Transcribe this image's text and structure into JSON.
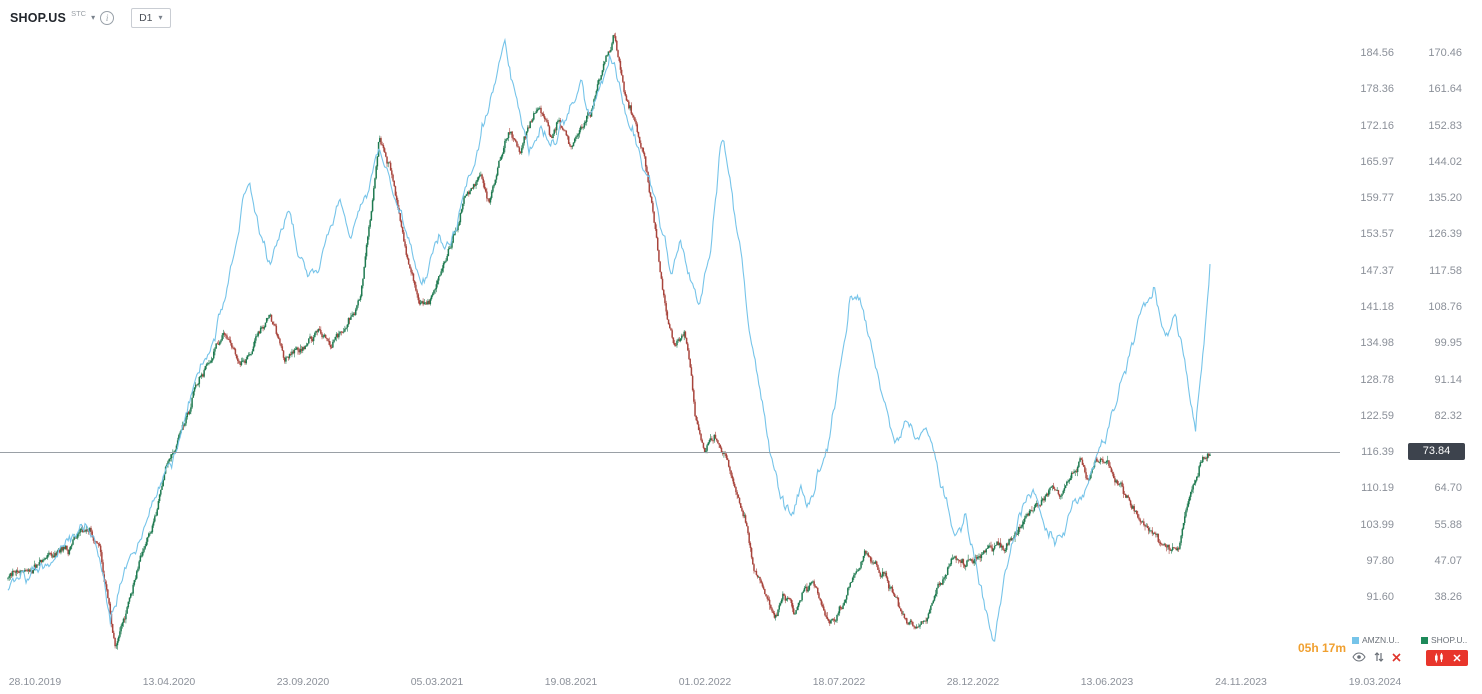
{
  "header": {
    "symbol": "SHOP.US",
    "exchange": "STC",
    "timeframe": "D1"
  },
  "icons": {
    "info": "i",
    "chevron_down": "▾"
  },
  "price_marker": {
    "value": "73.84"
  },
  "countdown": "05h 17m",
  "legend": [
    {
      "label": "AMZN.U..",
      "color": "#76c4e9"
    },
    {
      "label": "SHOP.U..",
      "color": "#1e8a5a"
    }
  ],
  "colors": {
    "up_candle": "#1f7a50",
    "down_candle": "#a8443c",
    "line": "#76c4e9",
    "axis_text": "#8b9099",
    "price_line": "#9aa0a6",
    "badge_bg": "#3d434d",
    "countdown": "#f0a030",
    "alert_red": "#e8352b",
    "icon_gray": "#6a7078"
  },
  "chart_data": {
    "type": "candlestick+line",
    "grid": false,
    "current_price": 73.84,
    "x_axis": {
      "labels": [
        "28.10.2019",
        "13.04.2020",
        "23.09.2020",
        "05.03.2021",
        "19.08.2021",
        "01.02.2022",
        "18.07.2022",
        "28.12.2022",
        "13.06.2023",
        "24.11.2023",
        "19.03.2024"
      ]
    },
    "y_axis_inner": {
      "top_value": 184.56,
      "step": 6.198,
      "labels": [
        "184.56",
        "178.36",
        "172.16",
        "165.97",
        "159.77",
        "153.57",
        "147.37",
        "141.18",
        "134.98",
        "128.78",
        "122.59",
        "116.39",
        "110.19",
        "103.99",
        "97.80",
        "91.60"
      ]
    },
    "y_axis_outer": {
      "top_value": 170.46,
      "step": 8.815,
      "labels": [
        "170.46",
        "161.64",
        "152.83",
        "144.02",
        "135.20",
        "126.39",
        "117.58",
        "108.76",
        "99.95",
        "91.14",
        "82.32",
        "",
        "64.70",
        "55.88",
        "47.07",
        "38.26"
      ]
    },
    "series": [
      {
        "name": "SHOP.US",
        "type": "candlestick",
        "axis": "outer",
        "anchors": [
          [
            0,
            43
          ],
          [
            0.027,
            46
          ],
          [
            0.052,
            51
          ],
          [
            0.068,
            57
          ],
          [
            0.077,
            49
          ],
          [
            0.089,
            27
          ],
          [
            0.101,
            38
          ],
          [
            0.118,
            55
          ],
          [
            0.131,
            69
          ],
          [
            0.143,
            77
          ],
          [
            0.156,
            89
          ],
          [
            0.168,
            96
          ],
          [
            0.181,
            103
          ],
          [
            0.193,
            94
          ],
          [
            0.206,
            101
          ],
          [
            0.218,
            108
          ],
          [
            0.23,
            96
          ],
          [
            0.243,
            100
          ],
          [
            0.255,
            103
          ],
          [
            0.268,
            100
          ],
          [
            0.28,
            103
          ],
          [
            0.293,
            111
          ],
          [
            0.309,
            150
          ],
          [
            0.318,
            142
          ],
          [
            0.326,
            130
          ],
          [
            0.334,
            118
          ],
          [
            0.343,
            108
          ],
          [
            0.355,
            113
          ],
          [
            0.368,
            123
          ],
          [
            0.38,
            135
          ],
          [
            0.393,
            142
          ],
          [
            0.401,
            135
          ],
          [
            0.409,
            145
          ],
          [
            0.418,
            152
          ],
          [
            0.426,
            147
          ],
          [
            0.434,
            153
          ],
          [
            0.443,
            157
          ],
          [
            0.451,
            151
          ],
          [
            0.459,
            154
          ],
          [
            0.468,
            147
          ],
          [
            0.476,
            152
          ],
          [
            0.484,
            157
          ],
          [
            0.492,
            164
          ],
          [
            0.505,
            175
          ],
          [
            0.513,
            162
          ],
          [
            0.522,
            154
          ],
          [
            0.53,
            145
          ],
          [
            0.538,
            128
          ],
          [
            0.547,
            108
          ],
          [
            0.555,
            99
          ],
          [
            0.563,
            103
          ],
          [
            0.572,
            82
          ],
          [
            0.58,
            75
          ],
          [
            0.588,
            78
          ],
          [
            0.597,
            73
          ],
          [
            0.605,
            66
          ],
          [
            0.613,
            58
          ],
          [
            0.621,
            44
          ],
          [
            0.63,
            39
          ],
          [
            0.638,
            34
          ],
          [
            0.646,
            39
          ],
          [
            0.655,
            35
          ],
          [
            0.663,
            39
          ],
          [
            0.671,
            41
          ],
          [
            0.68,
            34
          ],
          [
            0.688,
            32
          ],
          [
            0.696,
            39
          ],
          [
            0.705,
            44
          ],
          [
            0.713,
            49
          ],
          [
            0.721,
            46
          ],
          [
            0.73,
            44
          ],
          [
            0.738,
            39
          ],
          [
            0.746,
            32
          ],
          [
            0.755,
            29
          ],
          [
            0.763,
            34
          ],
          [
            0.771,
            39
          ],
          [
            0.78,
            44
          ],
          [
            0.788,
            49
          ],
          [
            0.796,
            46
          ],
          [
            0.804,
            47
          ],
          [
            0.817,
            50
          ],
          [
            0.829,
            52
          ],
          [
            0.842,
            56
          ],
          [
            0.854,
            61
          ],
          [
            0.867,
            65
          ],
          [
            0.875,
            62
          ],
          [
            0.883,
            67
          ],
          [
            0.892,
            71
          ],
          [
            0.9,
            68
          ],
          [
            0.908,
            72
          ],
          [
            0.917,
            69
          ],
          [
            0.925,
            65
          ],
          [
            0.933,
            60
          ],
          [
            0.942,
            57
          ],
          [
            0.95,
            55
          ],
          [
            0.958,
            51
          ],
          [
            0.967,
            49
          ],
          [
            0.975,
            52
          ],
          [
            0.979,
            57
          ],
          [
            0.983,
            62
          ],
          [
            0.988,
            67
          ],
          [
            0.992,
            71
          ],
          [
            1,
            73.8
          ]
        ]
      },
      {
        "name": "AMZN.US",
        "type": "line",
        "axis": "inner",
        "anchors": [
          [
            0,
            93
          ],
          [
            0.018,
            96
          ],
          [
            0.035,
            98
          ],
          [
            0.052,
            102
          ],
          [
            0.064,
            105
          ],
          [
            0.072,
            101
          ],
          [
            0.085,
            89
          ],
          [
            0.097,
            96
          ],
          [
            0.11,
            102
          ],
          [
            0.122,
            108
          ],
          [
            0.135,
            114
          ],
          [
            0.147,
            122
          ],
          [
            0.16,
            129
          ],
          [
            0.172,
            137
          ],
          [
            0.185,
            148
          ],
          [
            0.193,
            156
          ],
          [
            0.201,
            163
          ],
          [
            0.21,
            154
          ],
          [
            0.218,
            149
          ],
          [
            0.226,
            154
          ],
          [
            0.235,
            158
          ],
          [
            0.243,
            151
          ],
          [
            0.251,
            146
          ],
          [
            0.26,
            149
          ],
          [
            0.268,
            154
          ],
          [
            0.276,
            160
          ],
          [
            0.285,
            154
          ],
          [
            0.293,
            158
          ],
          [
            0.301,
            163
          ],
          [
            0.309,
            168
          ],
          [
            0.318,
            163
          ],
          [
            0.326,
            158
          ],
          [
            0.334,
            151
          ],
          [
            0.343,
            146
          ],
          [
            0.351,
            149
          ],
          [
            0.359,
            154
          ],
          [
            0.368,
            151
          ],
          [
            0.376,
            156
          ],
          [
            0.384,
            163
          ],
          [
            0.393,
            170
          ],
          [
            0.401,
            177
          ],
          [
            0.409,
            183
          ],
          [
            0.413,
            188
          ],
          [
            0.419,
            181
          ],
          [
            0.426,
            175
          ],
          [
            0.434,
            170
          ],
          [
            0.443,
            173
          ],
          [
            0.451,
            168
          ],
          [
            0.459,
            172
          ],
          [
            0.468,
            175
          ],
          [
            0.476,
            178
          ],
          [
            0.484,
            173
          ],
          [
            0.492,
            178
          ],
          [
            0.501,
            184
          ],
          [
            0.509,
            178
          ],
          [
            0.517,
            173
          ],
          [
            0.526,
            168
          ],
          [
            0.534,
            163
          ],
          [
            0.542,
            156
          ],
          [
            0.551,
            149
          ],
          [
            0.559,
            153
          ],
          [
            0.567,
            146
          ],
          [
            0.576,
            143
          ],
          [
            0.584,
            149
          ],
          [
            0.594,
            171
          ],
          [
            0.601,
            163
          ],
          [
            0.609,
            151
          ],
          [
            0.617,
            139
          ],
          [
            0.626,
            126
          ],
          [
            0.634,
            117
          ],
          [
            0.642,
            110
          ],
          [
            0.651,
            105
          ],
          [
            0.659,
            112
          ],
          [
            0.667,
            108
          ],
          [
            0.676,
            114
          ],
          [
            0.684,
            119
          ],
          [
            0.692,
            129
          ],
          [
            0.7,
            141
          ],
          [
            0.707,
            144
          ],
          [
            0.714,
            139
          ],
          [
            0.721,
            132
          ],
          [
            0.73,
            124
          ],
          [
            0.738,
            119
          ],
          [
            0.746,
            122
          ],
          [
            0.755,
            119
          ],
          [
            0.763,
            122
          ],
          [
            0.771,
            117
          ],
          [
            0.78,
            108
          ],
          [
            0.788,
            102
          ],
          [
            0.796,
            105
          ],
          [
            0.804,
            98
          ],
          [
            0.813,
            91
          ],
          [
            0.821,
            85
          ],
          [
            0.829,
            95
          ],
          [
            0.838,
            102
          ],
          [
            0.846,
            107
          ],
          [
            0.854,
            110
          ],
          [
            0.863,
            103
          ],
          [
            0.871,
            100
          ],
          [
            0.879,
            103
          ],
          [
            0.888,
            107
          ],
          [
            0.896,
            110
          ],
          [
            0.904,
            114
          ],
          [
            0.913,
            119
          ],
          [
            0.921,
            126
          ],
          [
            0.929,
            131
          ],
          [
            0.938,
            136
          ],
          [
            0.946,
            141
          ],
          [
            0.954,
            144
          ],
          [
            0.963,
            138
          ],
          [
            0.971,
            141
          ],
          [
            0.979,
            132
          ],
          [
            0.983,
            126
          ],
          [
            0.988,
            120
          ],
          [
            0.992,
            129
          ],
          [
            0.996,
            138
          ],
          [
            1,
            148
          ]
        ]
      }
    ]
  }
}
